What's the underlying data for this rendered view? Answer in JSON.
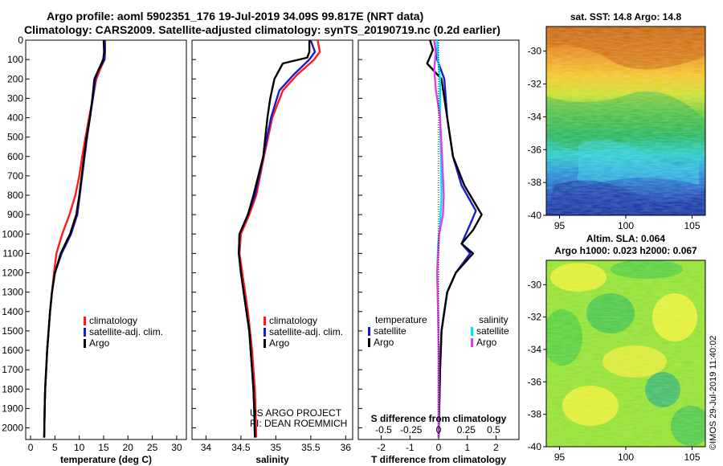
{
  "header": {
    "line1": "Argo profile: aoml 5902351_176 19-Jul-2019 34.09S 99.817E (NRT data)",
    "line2": "Climatology: CARS2009. Satellite-adjusted climatology: synTS_20190719.nc (0.2d earlier)"
  },
  "side_stamp": "©IMOS 29-Jul-2019 11:40:02",
  "colors": {
    "climatology": "#ff1a1a",
    "satellite": "#1a1acc",
    "argo": "#000000",
    "sat_salinity": "#00e5ff",
    "argo_salinity": "#e040e0"
  },
  "chart_data": [
    {
      "id": "temperature",
      "type": "line",
      "xlabel": "temperature (deg C)",
      "ylabel": "",
      "xlim": [
        -1,
        32
      ],
      "ylim": [
        0,
        2060
      ],
      "xticks": [
        0,
        5,
        10,
        15,
        20,
        25,
        30
      ],
      "yticks": [
        0,
        100,
        200,
        300,
        400,
        500,
        600,
        700,
        800,
        900,
        1000,
        1100,
        1200,
        1300,
        1400,
        1500,
        1600,
        1700,
        1800,
        1900,
        2000
      ],
      "legend": [
        "climatology",
        "satellite-adj. clim.",
        "Argo"
      ],
      "series": [
        {
          "name": "climatology",
          "color": "climatology",
          "points": [
            [
              15.3,
              0
            ],
            [
              15.3,
              50
            ],
            [
              15.2,
              100
            ],
            [
              14.3,
              150
            ],
            [
              13.5,
              200
            ],
            [
              12.8,
              300
            ],
            [
              12.0,
              400
            ],
            [
              11.3,
              500
            ],
            [
              10.6,
              600
            ],
            [
              10.0,
              700
            ],
            [
              9.2,
              800
            ],
            [
              8.0,
              900
            ],
            [
              6.5,
              1000
            ],
            [
              5.3,
              1100
            ],
            [
              4.8,
              1200
            ],
            [
              4.4,
              1300
            ],
            [
              4.0,
              1400
            ],
            [
              3.7,
              1500
            ],
            [
              3.4,
              1600
            ],
            [
              3.2,
              1700
            ],
            [
              3.0,
              1800
            ],
            [
              2.9,
              1900
            ],
            [
              2.8,
              2050
            ]
          ]
        },
        {
          "name": "satellite-adj. clim.",
          "color": "satellite",
          "points": [
            [
              15.2,
              0
            ],
            [
              15.3,
              50
            ],
            [
              15.2,
              100
            ],
            [
              14.0,
              150
            ],
            [
              13.3,
              200
            ],
            [
              12.8,
              300
            ],
            [
              12.2,
              400
            ],
            [
              11.6,
              500
            ],
            [
              11.1,
              600
            ],
            [
              10.6,
              700
            ],
            [
              10.1,
              800
            ],
            [
              9.6,
              900
            ],
            [
              8.3,
              1000
            ],
            [
              6.4,
              1100
            ],
            [
              5.0,
              1200
            ],
            [
              4.4,
              1300
            ],
            [
              4.0,
              1400
            ],
            [
              3.7,
              1500
            ],
            [
              3.4,
              1600
            ],
            [
              3.2,
              1700
            ],
            [
              3.0,
              1800
            ],
            [
              2.9,
              1900
            ],
            [
              2.8,
              2050
            ]
          ]
        },
        {
          "name": "Argo",
          "color": "argo",
          "points": [
            [
              15.0,
              0
            ],
            [
              15.1,
              60
            ],
            [
              14.9,
              100
            ],
            [
              14.2,
              140
            ],
            [
              13.1,
              200
            ],
            [
              12.7,
              300
            ],
            [
              12.2,
              400
            ],
            [
              11.5,
              500
            ],
            [
              11.0,
              600
            ],
            [
              10.5,
              700
            ],
            [
              10.0,
              800
            ],
            [
              9.4,
              900
            ],
            [
              8.1,
              1000
            ],
            [
              6.2,
              1100
            ],
            [
              5.0,
              1200
            ],
            [
              4.4,
              1300
            ],
            [
              4.0,
              1400
            ],
            [
              3.7,
              1500
            ],
            [
              3.4,
              1600
            ],
            [
              3.2,
              1700
            ],
            [
              3.0,
              1800
            ],
            [
              2.9,
              1900
            ],
            [
              2.8,
              2050
            ]
          ]
        }
      ]
    },
    {
      "id": "salinity",
      "type": "line",
      "xlabel": "salinity",
      "xlim": [
        33.8,
        36.1
      ],
      "ylim": [
        0,
        2060
      ],
      "xticks": [
        34,
        34.5,
        35,
        35.5,
        36
      ],
      "xticklabels": [
        "34",
        "34.5",
        "35",
        "35.5",
        "36"
      ],
      "legend": [
        "climatology",
        "satellite-adj. clim.",
        "Argo"
      ],
      "annotations": [
        "US ARGO PROJECT",
        "PI: DEAN ROEMMICH"
      ],
      "series": [
        {
          "name": "climatology",
          "color": "climatology",
          "points": [
            [
              35.6,
              0
            ],
            [
              35.63,
              60
            ],
            [
              35.55,
              100
            ],
            [
              35.3,
              180
            ],
            [
              35.1,
              260
            ],
            [
              34.95,
              400
            ],
            [
              34.83,
              600
            ],
            [
              34.72,
              800
            ],
            [
              34.62,
              900
            ],
            [
              34.5,
              1000
            ],
            [
              34.48,
              1100
            ],
            [
              34.52,
              1200
            ],
            [
              34.56,
              1300
            ],
            [
              34.6,
              1400
            ],
            [
              34.63,
              1500
            ],
            [
              34.66,
              1600
            ],
            [
              34.68,
              1700
            ],
            [
              34.7,
              1800
            ],
            [
              34.71,
              1900
            ],
            [
              34.72,
              2050
            ]
          ]
        },
        {
          "name": "satellite-adj. clim.",
          "color": "satellite",
          "points": [
            [
              35.5,
              0
            ],
            [
              35.56,
              60
            ],
            [
              35.48,
              100
            ],
            [
              35.25,
              180
            ],
            [
              35.05,
              260
            ],
            [
              34.93,
              400
            ],
            [
              34.82,
              600
            ],
            [
              34.7,
              800
            ],
            [
              34.6,
              900
            ],
            [
              34.48,
              1000
            ],
            [
              34.47,
              1100
            ],
            [
              34.5,
              1200
            ],
            [
              34.54,
              1300
            ],
            [
              34.58,
              1400
            ],
            [
              34.62,
              1500
            ],
            [
              34.64,
              1600
            ],
            [
              34.66,
              1700
            ],
            [
              34.68,
              1800
            ],
            [
              34.69,
              1900
            ],
            [
              34.7,
              2050
            ]
          ]
        },
        {
          "name": "Argo",
          "color": "argo",
          "points": [
            [
              35.48,
              0
            ],
            [
              35.48,
              60
            ],
            [
              35.45,
              90
            ],
            [
              35.1,
              120
            ],
            [
              34.98,
              200
            ],
            [
              34.92,
              300
            ],
            [
              34.88,
              400
            ],
            [
              34.82,
              600
            ],
            [
              34.68,
              800
            ],
            [
              34.6,
              900
            ],
            [
              34.48,
              1000
            ],
            [
              34.47,
              1100
            ],
            [
              34.5,
              1200
            ],
            [
              34.54,
              1300
            ],
            [
              34.58,
              1400
            ],
            [
              34.62,
              1500
            ],
            [
              34.64,
              1600
            ],
            [
              34.66,
              1700
            ],
            [
              34.68,
              1800
            ],
            [
              34.69,
              1900
            ],
            [
              34.7,
              2050
            ]
          ]
        }
      ]
    },
    {
      "id": "difference",
      "type": "line",
      "xlabel": "T difference from climatology",
      "top_label": "S difference from climatology",
      "xlim": [
        -2.8,
        2.8
      ],
      "ylim": [
        0,
        2060
      ],
      "xticks": [
        -2,
        -1,
        0,
        1,
        2
      ],
      "xticklabels": [
        "-2",
        "-1",
        "0",
        "1",
        "2"
      ],
      "s_ticks": [
        -0.5,
        -0.25,
        0,
        0.25,
        0.5
      ],
      "s_ticklabels": [
        "-0.5",
        "-0.25",
        "0",
        "0.25",
        "0.5"
      ],
      "legend_left_title": "temperature",
      "legend_right_title": "salinity",
      "legend": [
        "satellite",
        "Argo",
        "satellite",
        "Argo"
      ],
      "series": [
        {
          "name": "T satellite",
          "color": "satellite",
          "points": [
            [
              -0.15,
              0
            ],
            [
              -0.05,
              100
            ],
            [
              0.2,
              200
            ],
            [
              0.3,
              400
            ],
            [
              0.5,
              600
            ],
            [
              0.8,
              750
            ],
            [
              1.3,
              880
            ],
            [
              1.1,
              950
            ],
            [
              0.8,
              1050
            ],
            [
              1.1,
              1100
            ],
            [
              0.6,
              1200
            ],
            [
              0.3,
              1300
            ],
            [
              0.2,
              1400
            ],
            [
              0.1,
              1500
            ],
            [
              0.05,
              1700
            ],
            [
              0.0,
              2050
            ]
          ]
        },
        {
          "name": "T Argo",
          "color": "argo",
          "points": [
            [
              -0.3,
              0
            ],
            [
              -0.2,
              50
            ],
            [
              -0.4,
              120
            ],
            [
              0.1,
              200
            ],
            [
              0.3,
              400
            ],
            [
              0.5,
              600
            ],
            [
              0.9,
              750
            ],
            [
              1.5,
              900
            ],
            [
              1.2,
              980
            ],
            [
              0.8,
              1050
            ],
            [
              1.2,
              1100
            ],
            [
              0.6,
              1200
            ],
            [
              0.3,
              1300
            ],
            [
              0.2,
              1400
            ],
            [
              0.1,
              1500
            ],
            [
              0.05,
              1700
            ],
            [
              0.0,
              2050
            ]
          ]
        },
        {
          "name": "S satellite",
          "color": "sat_salinity",
          "points": [
            [
              -0.05,
              0
            ],
            [
              -0.02,
              100
            ],
            [
              0.05,
              200
            ],
            [
              0.05,
              400
            ],
            [
              0.08,
              600
            ],
            [
              0.1,
              800
            ],
            [
              0.05,
              950
            ],
            [
              -0.02,
              1050
            ],
            [
              -0.05,
              1200
            ],
            [
              -0.02,
              1400
            ],
            [
              0.0,
              1600
            ],
            [
              0.0,
              2050
            ]
          ]
        },
        {
          "name": "S Argo",
          "color": "argo_salinity",
          "points": [
            [
              -0.15,
              0
            ],
            [
              -0.1,
              60
            ],
            [
              -0.15,
              150
            ],
            [
              -0.1,
              250
            ],
            [
              0.05,
              400
            ],
            [
              0.12,
              600
            ],
            [
              0.18,
              800
            ],
            [
              0.15,
              900
            ],
            [
              0.02,
              1000
            ],
            [
              -0.05,
              1200
            ],
            [
              -0.02,
              1400
            ],
            [
              0.0,
              1600
            ],
            [
              0.0,
              2050
            ]
          ]
        }
      ]
    },
    {
      "id": "sst_map",
      "type": "heatmap",
      "title": "sat. SST: 14.8 Argo: 14.8",
      "xticks": [
        95,
        100,
        105
      ],
      "yticks": [
        -30,
        -32,
        -34,
        -36,
        -38,
        -40
      ],
      "xlim": [
        94,
        106
      ],
      "ylim": [
        -40,
        -28.5
      ]
    },
    {
      "id": "sla_map",
      "type": "heatmap",
      "title1": "Altim. SLA: 0.064",
      "title2": "Argo h1000: 0.023 h2000: 0.067",
      "xticks": [
        95,
        100,
        105
      ],
      "yticks": [
        -30,
        -32,
        -34,
        -36,
        -38,
        -40
      ],
      "xlim": [
        94,
        106
      ],
      "ylim": [
        -40,
        -28.5
      ]
    }
  ]
}
